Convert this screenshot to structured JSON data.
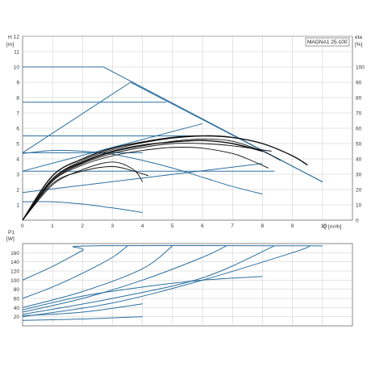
{
  "colors": {
    "blue": "#2b6f9e",
    "black": "#111111",
    "grid": "#c8c8c8",
    "frame": "#555555"
  },
  "chart_data": [
    {
      "type": "line",
      "title": "MAGNA1 25-100",
      "ylabel_top": "H",
      "ylabel_unit": "[m]",
      "y2label_top": "eta",
      "y2label_unit": "[%]",
      "xlabel": "Q [m³/h]",
      "xlim": [
        0,
        11
      ],
      "ylim": [
        0,
        12
      ],
      "y2lim": [
        0,
        120
      ],
      "x_ticks": [
        "0",
        "1",
        "2",
        "3",
        "4",
        "5",
        "6",
        "7",
        "8",
        "9",
        "10"
      ],
      "y_ticks": [
        "1",
        "2",
        "3",
        "4",
        "5",
        "6",
        "7",
        "8",
        "9",
        "10",
        "11",
        "12"
      ],
      "y2_ticks": [
        "0",
        "10",
        "20",
        "30",
        "40",
        "50",
        "60",
        "70",
        "80",
        "90",
        "100"
      ],
      "grid": true,
      "head_curves_black": [
        {
          "x": [
            0,
            1,
            2,
            3,
            4,
            5,
            6,
            6.5,
            7,
            8,
            9,
            9.5
          ],
          "y": [
            0,
            2.7,
            3.9,
            4.6,
            5.05,
            5.35,
            5.5,
            5.5,
            5.4,
            5.0,
            4.2,
            3.6
          ]
        },
        {
          "x": [
            0,
            1,
            2,
            3,
            4,
            5,
            6,
            7,
            8,
            8.6
          ],
          "y": [
            0,
            2.6,
            3.75,
            4.45,
            4.85,
            5.15,
            5.3,
            5.15,
            4.5,
            3.9
          ]
        },
        {
          "x": [
            0,
            1,
            2,
            3,
            4,
            5,
            6,
            7,
            8.3
          ],
          "y": [
            0,
            2.6,
            3.7,
            4.35,
            4.75,
            5.0,
            5.0,
            4.85,
            4.5
          ]
        },
        {
          "x": [
            0,
            1,
            2,
            3,
            4,
            5,
            6,
            7,
            7.5,
            8.2
          ],
          "y": [
            0,
            2.55,
            3.6,
            4.2,
            4.55,
            4.75,
            4.7,
            4.35,
            4.0,
            3.4
          ]
        },
        {
          "x": [
            0,
            1,
            2,
            3,
            3.7,
            4.2
          ],
          "y": [
            0,
            2.4,
            3.2,
            3.5,
            3.2,
            2.9
          ]
        },
        {
          "x": [
            0,
            1,
            2,
            3,
            3.7,
            4.0
          ],
          "y": [
            0,
            2.3,
            3.3,
            3.8,
            3.3,
            2.5
          ]
        }
      ],
      "head_lines_blue": [
        {
          "x": [
            0,
            2.7,
            10
          ],
          "y": [
            10,
            10,
            2.5
          ]
        },
        {
          "x": [
            0,
            3.6
          ],
          "y": [
            4.4,
            9.0
          ]
        },
        {
          "x": [
            3.6,
            10
          ],
          "y": [
            9.0,
            2.5
          ]
        },
        {
          "x": [
            0,
            4.8
          ],
          "y": [
            7.7,
            7.7
          ]
        },
        {
          "x": [
            0,
            6.1
          ],
          "y": [
            5.5,
            5.5
          ]
        },
        {
          "x": [
            0,
            4.0
          ],
          "y": [
            4.4,
            4.4
          ]
        },
        {
          "x": [
            0,
            8.4
          ],
          "y": [
            3.2,
            3.2
          ]
        },
        {
          "x": [
            0,
            8.0
          ],
          "y": [
            1.8,
            3.7
          ]
        },
        {
          "x": [
            0,
            6.0
          ],
          "y": [
            3.2,
            6.3
          ]
        },
        {
          "x": [
            0,
            1,
            2,
            3,
            4,
            5,
            6,
            7,
            8
          ],
          "y": [
            4.35,
            4.55,
            4.5,
            4.3,
            3.9,
            3.4,
            2.8,
            2.2,
            1.7
          ]
        },
        {
          "x": [
            0,
            1,
            2,
            3,
            4
          ],
          "y": [
            1.2,
            1.2,
            1.05,
            0.8,
            0.5
          ]
        }
      ],
      "eff_curves_black": [
        {
          "x": [
            0,
            1,
            2,
            3,
            4,
            5,
            6,
            7,
            8,
            9,
            9.5
          ],
          "y": [
            0,
            29,
            40,
            47,
            51,
            54,
            55,
            54,
            50,
            42,
            36
          ]
        },
        {
          "x": [
            0,
            1,
            2,
            3,
            4,
            5,
            6,
            7,
            8
          ],
          "y": [
            0,
            27,
            38,
            45,
            49,
            51,
            52,
            50,
            45
          ]
        }
      ]
    },
    {
      "type": "line",
      "ylabel_top": "P1",
      "ylabel_unit": "[W]",
      "xlim": [
        0,
        11
      ],
      "ylim": [
        0,
        180
      ],
      "y_ticks": [
        "20",
        "40",
        "60",
        "80",
        "100",
        "120",
        "140",
        "160"
      ],
      "grid": true,
      "power_curves_blue": [
        {
          "x": [
            0,
            1,
            2,
            2.3,
            10
          ],
          "y": [
            100,
            130,
            165,
            175,
            175
          ]
        },
        {
          "x": [
            0,
            1,
            2,
            3,
            3.5
          ],
          "y": [
            60,
            85,
            115,
            150,
            175
          ]
        },
        {
          "x": [
            0,
            2,
            4,
            5
          ],
          "y": [
            40,
            75,
            125,
            175
          ]
        },
        {
          "x": [
            0,
            2,
            4,
            6,
            6.8
          ],
          "y": [
            30,
            60,
            100,
            150,
            175
          ]
        },
        {
          "x": [
            0,
            3,
            6,
            8.4
          ],
          "y": [
            25,
            60,
            105,
            175
          ]
        },
        {
          "x": [
            0,
            3,
            6,
            9,
            9.6
          ],
          "y": [
            20,
            50,
            100,
            160,
            175
          ]
        },
        {
          "x": [
            0,
            2,
            4,
            6,
            8
          ],
          "y": [
            35,
            65,
            85,
            100,
            108
          ]
        },
        {
          "x": [
            0,
            2,
            4
          ],
          "y": [
            22,
            30,
            48
          ]
        },
        {
          "x": [
            0,
            2,
            4
          ],
          "y": [
            12,
            15,
            20
          ]
        }
      ]
    }
  ]
}
